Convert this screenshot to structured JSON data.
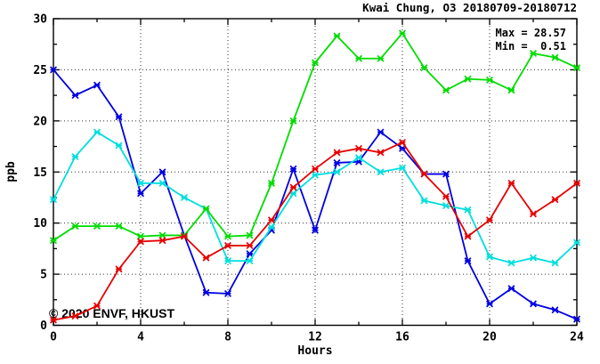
{
  "title": "Kwai Chung, O3 20180709-20180712",
  "annotations": {
    "max_label": "Max = 28.57",
    "min_label": "Min =  0.51"
  },
  "watermark": "© 2020 ENVF, HKUST",
  "axes": {
    "xlabel": "Hours",
    "ylabel": "ppb"
  },
  "colors": {
    "blue": "#0000e0",
    "cyan": "#00dede",
    "green": "#00dc00",
    "red": "#e60000",
    "grid": "#333333",
    "watermark": "#eadada"
  },
  "chart_data": {
    "type": "line",
    "title": "Kwai Chung, O3 20180709-20180712",
    "xlabel": "Hours",
    "ylabel": "ppb",
    "xlim": [
      0,
      24
    ],
    "ylim": [
      0,
      30
    ],
    "xticks": [
      0,
      4,
      8,
      12,
      16,
      20,
      24
    ],
    "yticks": [
      0,
      5,
      10,
      15,
      20,
      25,
      30
    ],
    "minor_xticks": [
      2,
      6,
      10,
      14,
      18,
      22
    ],
    "minor_yticks": [
      2.5,
      7.5,
      12.5,
      17.5,
      22.5,
      27.5
    ],
    "grid": "dotted",
    "legend": "none",
    "max": 28.57,
    "min": 0.51,
    "x": [
      0,
      1,
      2,
      3,
      4,
      5,
      6,
      7,
      8,
      9,
      10,
      11,
      12,
      13,
      14,
      15,
      16,
      17,
      18,
      19,
      20,
      21,
      22,
      23,
      24
    ],
    "series": [
      {
        "name": "series-blue",
        "color": "#0000e0",
        "values": [
          25.0,
          22.5,
          23.5,
          20.4,
          12.9,
          15.0,
          8.8,
          3.2,
          3.1,
          7.0,
          9.3,
          15.3,
          9.3,
          15.9,
          16.0,
          18.9,
          17.3,
          14.8,
          14.8,
          6.3,
          2.1,
          3.6,
          2.1,
          1.5,
          0.6
        ]
      },
      {
        "name": "series-cyan",
        "color": "#00dede",
        "values": [
          12.3,
          16.5,
          18.9,
          17.6,
          13.9,
          13.9,
          12.5,
          11.4,
          6.3,
          6.3,
          9.6,
          12.9,
          14.7,
          15.0,
          16.4,
          15.0,
          15.4,
          12.2,
          11.7,
          11.3,
          6.7,
          6.1,
          6.6,
          6.1,
          8.1
        ]
      },
      {
        "name": "series-green",
        "color": "#00dc00",
        "values": [
          8.3,
          9.7,
          9.7,
          9.7,
          8.7,
          8.8,
          8.8,
          11.4,
          8.7,
          8.8,
          13.9,
          20.0,
          25.7,
          28.3,
          26.1,
          26.1,
          28.57,
          25.2,
          23.0,
          24.1,
          24.0,
          23.0,
          26.6,
          26.2,
          25.2
        ]
      },
      {
        "name": "series-red",
        "color": "#e60000",
        "values": [
          0.51,
          0.9,
          1.9,
          5.5,
          8.2,
          8.3,
          8.7,
          6.6,
          7.8,
          7.8,
          10.3,
          13.5,
          15.3,
          16.9,
          17.3,
          16.9,
          17.9,
          14.8,
          12.6,
          8.7,
          10.3,
          13.9,
          10.9,
          12.3,
          13.9
        ]
      }
    ]
  }
}
